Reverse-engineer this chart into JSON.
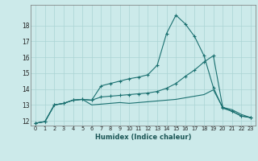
{
  "bg_color": "#cceaea",
  "grid_color": "#aad4d4",
  "line_color": "#1a7070",
  "xlabel": "Humidex (Indice chaleur)",
  "xlim": [
    -0.5,
    23.5
  ],
  "ylim": [
    11.7,
    19.3
  ],
  "yticks": [
    12,
    13,
    14,
    15,
    16,
    17,
    18
  ],
  "xticks": [
    0,
    1,
    2,
    3,
    4,
    5,
    6,
    7,
    8,
    9,
    10,
    11,
    12,
    13,
    14,
    15,
    16,
    17,
    18,
    19,
    20,
    21,
    22,
    23
  ],
  "line1_x": [
    0,
    1,
    2,
    3,
    4,
    5,
    6,
    7,
    8,
    9,
    10,
    11,
    12,
    13,
    14,
    15,
    16,
    17,
    18,
    19,
    20,
    21,
    22,
    23
  ],
  "line1_y": [
    11.85,
    11.95,
    13.0,
    13.1,
    13.3,
    13.35,
    13.3,
    14.2,
    14.35,
    14.5,
    14.65,
    14.75,
    14.9,
    15.5,
    17.5,
    18.65,
    18.1,
    17.3,
    16.1,
    14.1,
    12.8,
    12.6,
    12.3,
    12.2
  ],
  "line2_x": [
    0,
    1,
    2,
    3,
    4,
    5,
    6,
    7,
    8,
    9,
    10,
    11,
    12,
    13,
    14,
    15,
    16,
    17,
    18,
    19,
    20,
    21,
    22,
    23
  ],
  "line2_y": [
    11.85,
    11.95,
    13.0,
    13.1,
    13.3,
    13.35,
    13.3,
    13.5,
    13.55,
    13.6,
    13.65,
    13.7,
    13.75,
    13.85,
    14.05,
    14.35,
    14.8,
    15.2,
    15.7,
    16.1,
    12.85,
    12.6,
    12.3,
    12.2
  ],
  "line3_x": [
    0,
    1,
    2,
    3,
    4,
    5,
    6,
    7,
    8,
    9,
    10,
    11,
    12,
    13,
    14,
    15,
    16,
    17,
    18,
    19,
    20,
    21,
    22,
    23
  ],
  "line3_y": [
    11.85,
    11.95,
    13.0,
    13.1,
    13.3,
    13.35,
    13.0,
    13.05,
    13.1,
    13.15,
    13.1,
    13.15,
    13.2,
    13.25,
    13.3,
    13.35,
    13.45,
    13.55,
    13.65,
    13.95,
    12.85,
    12.7,
    12.4,
    12.2
  ]
}
